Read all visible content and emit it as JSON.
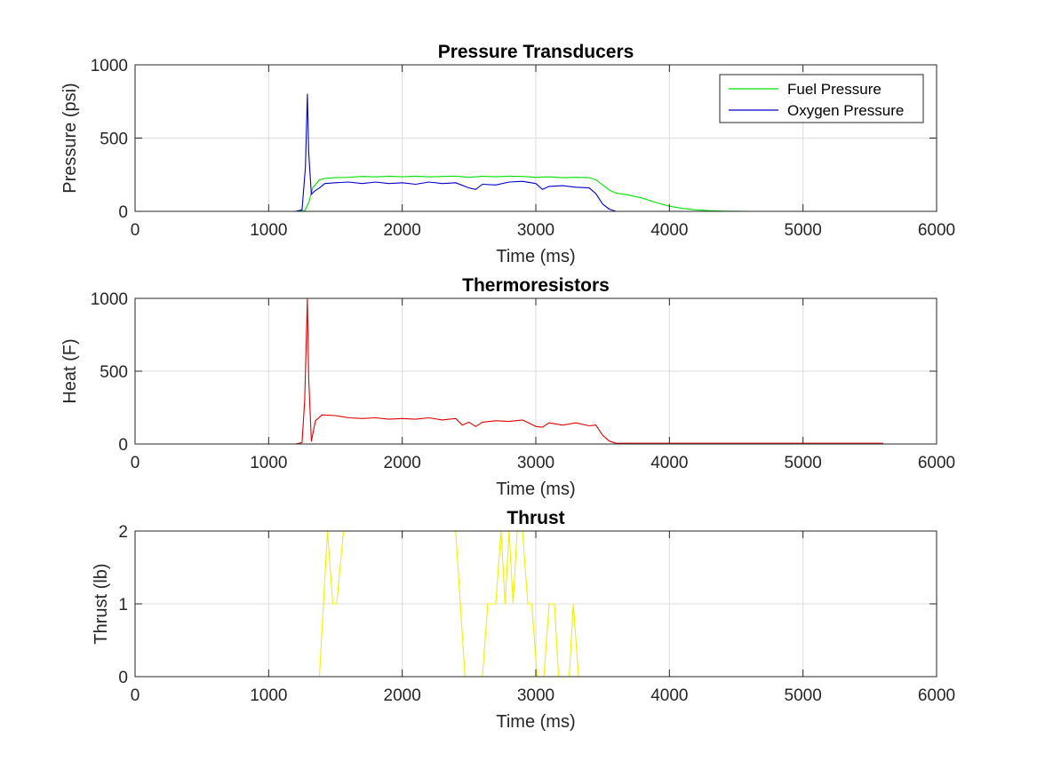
{
  "chart_data": [
    {
      "type": "line",
      "title": "Pressure Transducers",
      "xlabel": "Time (ms)",
      "ylabel": "Pressure (psi)",
      "xlim": [
        0,
        6000
      ],
      "ylim": [
        0,
        1000
      ],
      "xticks": [
        "0",
        "1000",
        "2000",
        "3000",
        "4000",
        "5000",
        "6000"
      ],
      "yticks": [
        "0",
        "500",
        "1000"
      ],
      "grid": true,
      "legend": "top-right",
      "series": [
        {
          "name": "Fuel Pressure",
          "color": "#00e000",
          "x": [
            0,
            600,
            1200,
            1270,
            1300,
            1330,
            1380,
            1420,
            1500,
            1600,
            1700,
            1800,
            1900,
            2000,
            2100,
            2200,
            2300,
            2400,
            2500,
            2600,
            2700,
            2800,
            2900,
            3000,
            3100,
            3200,
            3300,
            3400,
            3450,
            3500,
            3550,
            3600,
            3700,
            3800,
            3900,
            4000,
            4100,
            4200,
            4300,
            4400,
            4600,
            5000,
            5600
          ],
          "y": [
            0,
            0,
            0,
            5,
            60,
            160,
            215,
            225,
            230,
            232,
            238,
            235,
            240,
            236,
            240,
            235,
            238,
            240,
            232,
            240,
            236,
            240,
            238,
            232,
            235,
            230,
            232,
            230,
            215,
            180,
            145,
            125,
            110,
            90,
            60,
            35,
            20,
            10,
            5,
            2,
            0,
            0,
            0
          ]
        },
        {
          "name": "Oxygen Pressure",
          "color": "#0000cc",
          "x": [
            0,
            600,
            1200,
            1250,
            1275,
            1290,
            1300,
            1320,
            1340,
            1380,
            1420,
            1500,
            1600,
            1700,
            1800,
            1900,
            2000,
            2100,
            2200,
            2300,
            2400,
            2500,
            2550,
            2600,
            2700,
            2800,
            2900,
            3000,
            3050,
            3100,
            3200,
            3300,
            3400,
            3450,
            3500,
            3550,
            3600,
            5600
          ],
          "y": [
            0,
            0,
            0,
            10,
            300,
            800,
            400,
            115,
            135,
            160,
            190,
            195,
            200,
            190,
            200,
            190,
            195,
            185,
            200,
            190,
            195,
            160,
            150,
            185,
            180,
            200,
            205,
            190,
            150,
            170,
            175,
            165,
            160,
            120,
            50,
            15,
            0,
            0
          ]
        }
      ]
    },
    {
      "type": "line",
      "title": "Thermoresistors",
      "xlabel": "Time (ms)",
      "ylabel": "Heat (F)",
      "xlim": [
        0,
        6000
      ],
      "ylim": [
        0,
        1000
      ],
      "xticks": [
        "0",
        "1000",
        "2000",
        "3000",
        "4000",
        "5000",
        "6000"
      ],
      "yticks": [
        "0",
        "500",
        "1000"
      ],
      "grid": true,
      "series": [
        {
          "color": "#e00000",
          "x": [
            0,
            1200,
            1250,
            1270,
            1290,
            1300,
            1320,
            1350,
            1400,
            1500,
            1600,
            1700,
            1800,
            1900,
            2000,
            2100,
            2200,
            2300,
            2400,
            2450,
            2500,
            2550,
            2600,
            2700,
            2800,
            2900,
            3000,
            3050,
            3100,
            3200,
            3300,
            3400,
            3450,
            3500,
            3550,
            3600,
            5600
          ],
          "y": [
            0,
            0,
            10,
            300,
            1000,
            450,
            20,
            160,
            200,
            195,
            180,
            175,
            180,
            170,
            175,
            170,
            180,
            165,
            175,
            130,
            150,
            120,
            150,
            160,
            155,
            165,
            120,
            115,
            145,
            130,
            145,
            125,
            130,
            60,
            20,
            5,
            5
          ]
        }
      ]
    },
    {
      "type": "line",
      "title": "Thrust",
      "xlabel": "Time (ms)",
      "ylabel": "Thrust (lb)",
      "xlim": [
        0,
        6000
      ],
      "ylim": [
        0,
        2
      ],
      "xticks": [
        "0",
        "1000",
        "2000",
        "3000",
        "4000",
        "5000",
        "6000"
      ],
      "yticks": [
        "0",
        "1",
        "2"
      ],
      "grid": true,
      "series": [
        {
          "color": "#f0f000",
          "x": [
            0,
            1380,
            1440,
            1480,
            1510,
            1560,
            2000,
            2400,
            2470,
            2600,
            2640,
            2700,
            2740,
            2770,
            2800,
            2830,
            2860,
            2900,
            2940,
            2970,
            3010,
            3060,
            3100,
            3140,
            3170,
            3250,
            3280,
            3320,
            5600
          ],
          "y": [
            0,
            0,
            2,
            1,
            1,
            2,
            2,
            2,
            0,
            0,
            1,
            1,
            2,
            1,
            2,
            1,
            2,
            2,
            1,
            1,
            0,
            0,
            1,
            1,
            0,
            0,
            1,
            0,
            0
          ]
        }
      ]
    }
  ]
}
